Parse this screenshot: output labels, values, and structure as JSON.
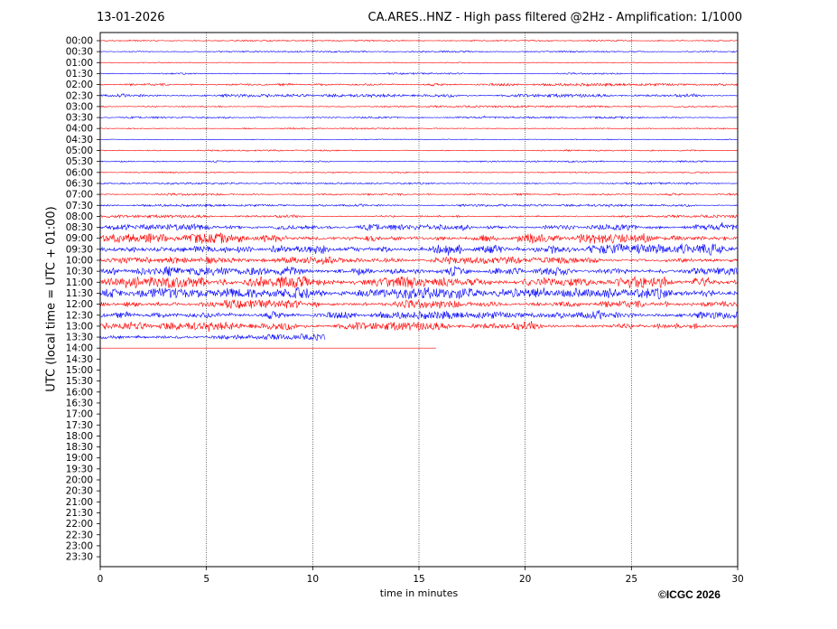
{
  "header": {
    "date": "13-01-2026",
    "title": "CA.ARES..HNZ - High pass filtered @2Hz - Amplification: 1/1000"
  },
  "footer": {
    "copyright": "©ICGC 2026"
  },
  "chart_data": {
    "type": "line",
    "xlabel": "time in minutes",
    "ylabel": "UTC (local time = UTC + 01:00)",
    "xlim": [
      0,
      30
    ],
    "x_ticks": [
      0,
      5,
      10,
      15,
      20,
      25,
      30
    ],
    "vertical_grid": "dotted at 5, 10, 15, 20, 25",
    "colors": {
      "red_trace": "#ff0000",
      "blue_trace": "#0000ff"
    },
    "trace_color_pattern": "alternating red / blue by row starting with red at 00:00",
    "row_labels": [
      "00:00",
      "00:30",
      "01:00",
      "01:30",
      "02:00",
      "02:30",
      "03:00",
      "03:30",
      "04:00",
      "04:30",
      "05:00",
      "05:30",
      "06:00",
      "06:30",
      "07:00",
      "07:30",
      "08:00",
      "08:30",
      "09:00",
      "09:30",
      "10:00",
      "10:30",
      "11:00",
      "11:30",
      "12:00",
      "12:30",
      "13:00",
      "13:30",
      "14:00",
      "14:30",
      "15:00",
      "15:30",
      "16:00",
      "16:30",
      "17:00",
      "17:30",
      "18:00",
      "18:30",
      "19:00",
      "19:30",
      "20:00",
      "20:30",
      "21:00",
      "21:30",
      "22:00",
      "22:30",
      "23:00",
      "23:30"
    ],
    "row_amplitude_relative": [
      0.1,
      0.12,
      0.05,
      0.12,
      0.22,
      0.25,
      0.15,
      0.15,
      0.12,
      0.05,
      0.1,
      0.12,
      0.1,
      0.15,
      0.18,
      0.18,
      0.22,
      0.55,
      0.9,
      1.0,
      0.6,
      0.8,
      1.0,
      1.0,
      0.75,
      0.65,
      0.7,
      0.55,
      0.02,
      0,
      0,
      0,
      0,
      0,
      0,
      0,
      0,
      0,
      0,
      0,
      0,
      0,
      0,
      0,
      0,
      0,
      0,
      0
    ],
    "row_end_minutes": [
      30,
      30,
      30,
      30,
      30,
      30,
      30,
      30,
      30,
      30,
      30,
      30,
      30,
      30,
      30,
      30,
      30,
      30,
      30,
      30,
      30,
      30,
      30,
      30,
      30,
      30,
      30,
      10.6,
      15.8,
      0,
      0,
      0,
      0,
      0,
      0,
      0,
      0,
      0,
      0,
      0,
      0,
      0,
      0,
      0,
      0,
      0,
      0,
      0
    ]
  }
}
